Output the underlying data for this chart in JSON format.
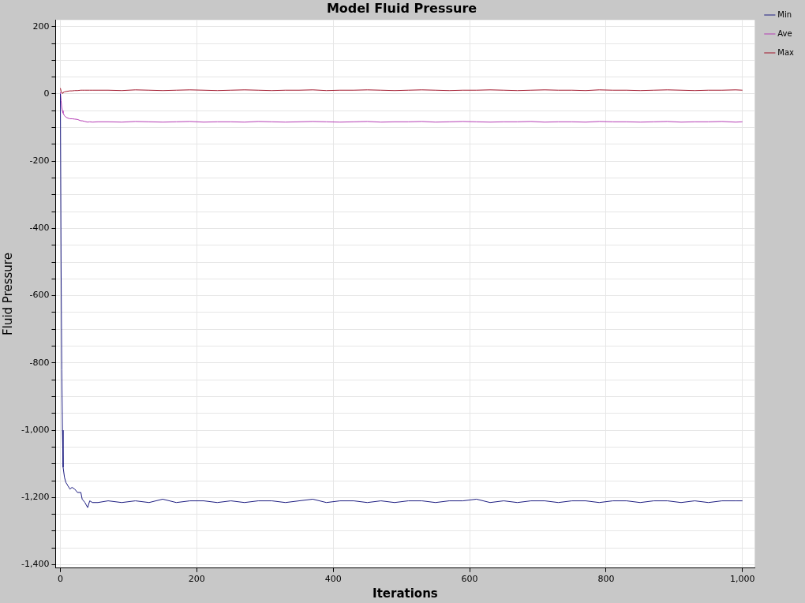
{
  "chart_data": {
    "type": "line",
    "title": "Model Fluid Pressure",
    "xlabel": "Iterations",
    "ylabel": "Fluid Pressure",
    "x": [
      0,
      1,
      2,
      3,
      4,
      6,
      8,
      11,
      14,
      17,
      21,
      25,
      30,
      32,
      36,
      40,
      43,
      47,
      55,
      70,
      90,
      110,
      130,
      150,
      170,
      190,
      210,
      230,
      250,
      270,
      290,
      310,
      330,
      350,
      370,
      390,
      410,
      430,
      450,
      470,
      490,
      510,
      530,
      550,
      570,
      590,
      610,
      630,
      650,
      670,
      690,
      710,
      730,
      750,
      770,
      790,
      810,
      830,
      850,
      870,
      890,
      910,
      930,
      950,
      970,
      990,
      1000
    ],
    "series": [
      {
        "name": "Min",
        "color": "#1c1c80",
        "values": [
          0,
          -500,
          -820,
          -1000,
          -1110,
          -1140,
          -1155,
          -1165,
          -1175,
          -1170,
          -1175,
          -1185,
          -1185,
          -1205,
          -1215,
          -1230,
          -1210,
          -1215,
          -1215,
          -1210,
          -1215,
          -1210,
          -1215,
          -1205,
          -1215,
          -1210,
          -1210,
          -1215,
          -1210,
          -1215,
          -1210,
          -1210,
          -1215,
          -1210,
          -1205,
          -1215,
          -1210,
          -1210,
          -1215,
          -1210,
          -1215,
          -1210,
          -1210,
          -1215,
          -1210,
          -1210,
          -1205,
          -1215,
          -1210,
          -1215,
          -1210,
          -1210,
          -1215,
          -1210,
          -1210,
          -1215,
          -1210,
          -1210,
          -1215,
          -1210,
          -1210,
          -1215,
          -1210,
          -1215,
          -1210,
          -1210,
          -1210
        ]
      },
      {
        "name": "Ave",
        "color": "#b43cb4",
        "values": [
          5,
          -20,
          -40,
          -50,
          -57,
          -65,
          -69,
          -72,
          -74,
          -74,
          -75,
          -76,
          -80,
          -80,
          -82,
          -84,
          -83,
          -84,
          -83,
          -83,
          -84,
          -82,
          -83,
          -84,
          -83,
          -82,
          -84,
          -83,
          -83,
          -84,
          -82,
          -83,
          -84,
          -83,
          -82,
          -83,
          -84,
          -83,
          -82,
          -84,
          -83,
          -83,
          -82,
          -84,
          -83,
          -82,
          -83,
          -84,
          -83,
          -83,
          -82,
          -84,
          -83,
          -83,
          -84,
          -82,
          -83,
          -83,
          -84,
          -83,
          -82,
          -84,
          -83,
          -83,
          -82,
          -84,
          -83
        ]
      },
      {
        "name": "Max",
        "color": "#a0142a",
        "values": [
          17,
          8,
          3,
          2,
          4,
          6,
          7,
          8,
          9,
          9,
          10,
          10,
          11,
          11,
          11,
          11,
          11,
          11,
          11,
          11,
          10,
          12,
          11,
          10,
          11,
          12,
          11,
          10,
          11,
          12,
          11,
          10,
          11,
          11,
          12,
          10,
          11,
          11,
          12,
          11,
          10,
          11,
          12,
          11,
          10,
          11,
          11,
          12,
          11,
          10,
          11,
          12,
          11,
          11,
          10,
          12,
          11,
          11,
          10,
          11,
          12,
          11,
          10,
          11,
          11,
          12,
          11
        ]
      }
    ],
    "xlim": [
      -7,
      1018
    ],
    "ylim": [
      -1410,
      220
    ],
    "xticks": [
      0,
      200,
      400,
      600,
      800,
      {
        "value": 1000,
        "label": "1,000"
      }
    ],
    "yticks": [
      200,
      {
        "value": 150,
        "label": null
      },
      {
        "value": 100,
        "label": null
      },
      {
        "value": 50,
        "label": null
      },
      0,
      {
        "value": -50,
        "label": null
      },
      {
        "value": -100,
        "label": null
      },
      {
        "value": -150,
        "label": null
      },
      -200,
      {
        "value": -250,
        "label": null
      },
      {
        "value": -300,
        "label": null
      },
      {
        "value": -350,
        "label": null
      },
      -400,
      {
        "value": -450,
        "label": null
      },
      {
        "value": -500,
        "label": null
      },
      {
        "value": -550,
        "label": null
      },
      -600,
      {
        "value": -650,
        "label": null
      },
      {
        "value": -700,
        "label": null
      },
      {
        "value": -750,
        "label": null
      },
      -800,
      {
        "value": -850,
        "label": null
      },
      {
        "value": -900,
        "label": null
      },
      {
        "value": -950,
        "label": null
      },
      {
        "value": -1000,
        "label": "-1,000"
      },
      {
        "value": -1050,
        "label": null
      },
      {
        "value": -1100,
        "label": null
      },
      {
        "value": -1150,
        "label": null
      },
      {
        "value": -1200,
        "label": "-1,200"
      },
      {
        "value": -1250,
        "label": null
      },
      {
        "value": -1300,
        "label": null
      },
      {
        "value": -1350,
        "label": null
      },
      {
        "value": -1400,
        "label": "-1,400"
      }
    ],
    "grid": true,
    "legend": "top right",
    "marker": "none",
    "line_style": "solid"
  }
}
